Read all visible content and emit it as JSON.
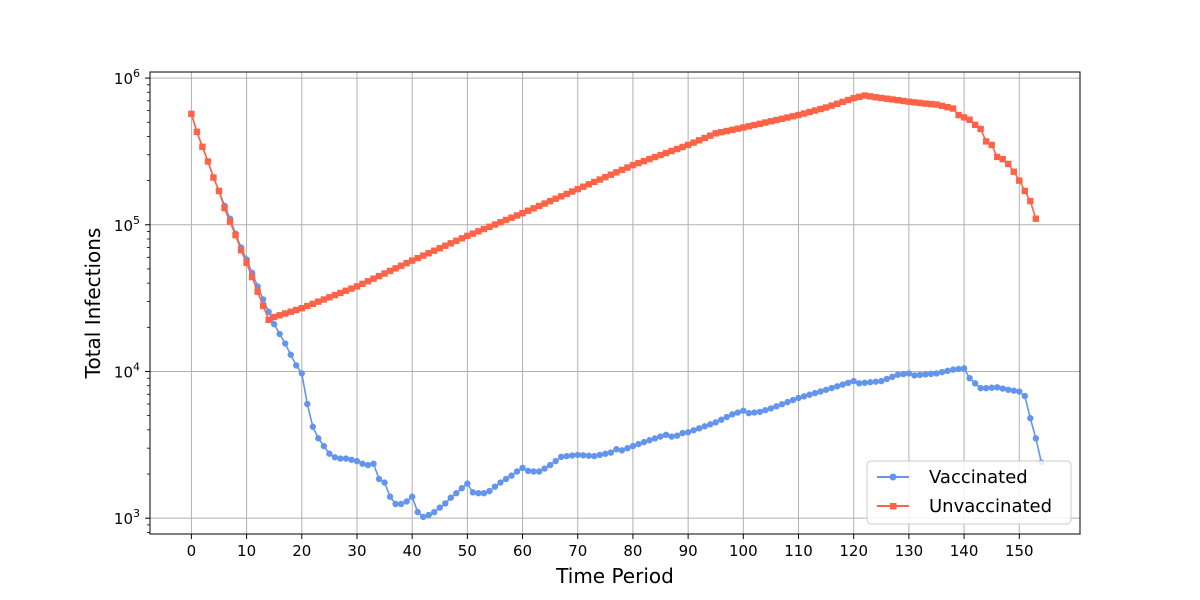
{
  "chart_data": {
    "type": "line",
    "xlabel": "Time Period",
    "ylabel": "Total Infections",
    "yscale": "log",
    "xlim": [
      -7.5,
      161
    ],
    "ylim": [
      780,
      1100000
    ],
    "xticks": [
      0,
      10,
      20,
      30,
      40,
      50,
      60,
      70,
      80,
      90,
      100,
      110,
      120,
      130,
      140,
      150
    ],
    "yticks": [
      {
        "value": 1000,
        "base": "10",
        "exp": "3"
      },
      {
        "value": 10000,
        "base": "10",
        "exp": "4"
      },
      {
        "value": 100000,
        "base": "10",
        "exp": "5"
      },
      {
        "value": 1000000,
        "base": "10",
        "exp": "6"
      }
    ],
    "grid": true,
    "legend_position": "lower-right",
    "series": [
      {
        "name": "Vaccinated",
        "color": "#6495ED",
        "marker": "circle",
        "anchors": [
          [
            0,
            570000
          ],
          [
            1,
            430000
          ],
          [
            2,
            340000
          ],
          [
            3,
            270000
          ],
          [
            4,
            210000
          ],
          [
            5,
            170000
          ],
          [
            6,
            135000
          ],
          [
            7,
            110000
          ],
          [
            8,
            87000
          ],
          [
            9,
            70000
          ],
          [
            10,
            58000
          ],
          [
            11,
            47000
          ],
          [
            12,
            38000
          ],
          [
            13,
            31000
          ],
          [
            14,
            25500
          ],
          [
            15,
            21000
          ],
          [
            16,
            18000
          ],
          [
            17,
            15500
          ],
          [
            18,
            13000
          ],
          [
            19,
            11000
          ],
          [
            20,
            9700
          ],
          [
            21,
            6000
          ],
          [
            22,
            4200
          ],
          [
            23,
            3500
          ],
          [
            24,
            3100
          ],
          [
            25,
            2750
          ],
          [
            26,
            2600
          ],
          [
            27,
            2550
          ],
          [
            28,
            2550
          ],
          [
            29,
            2500
          ],
          [
            30,
            2450
          ],
          [
            31,
            2350
          ],
          [
            32,
            2300
          ],
          [
            33,
            2350
          ],
          [
            34,
            1850
          ],
          [
            35,
            1750
          ],
          [
            36,
            1400
          ],
          [
            37,
            1250
          ],
          [
            38,
            1250
          ],
          [
            39,
            1300
          ],
          [
            40,
            1400
          ],
          [
            41,
            1100
          ],
          [
            42,
            1020
          ],
          [
            43,
            1050
          ],
          [
            44,
            1100
          ],
          [
            45,
            1180
          ],
          [
            46,
            1260
          ],
          [
            47,
            1380
          ],
          [
            48,
            1480
          ],
          [
            49,
            1600
          ],
          [
            50,
            1720
          ],
          [
            51,
            1500
          ],
          [
            52,
            1480
          ],
          [
            53,
            1480
          ],
          [
            54,
            1530
          ],
          [
            55,
            1640
          ],
          [
            56,
            1750
          ],
          [
            57,
            1850
          ],
          [
            58,
            1950
          ],
          [
            59,
            2080
          ],
          [
            60,
            2200
          ],
          [
            61,
            2100
          ],
          [
            62,
            2080
          ],
          [
            63,
            2080
          ],
          [
            64,
            2180
          ],
          [
            65,
            2300
          ],
          [
            66,
            2450
          ],
          [
            67,
            2620
          ],
          [
            70,
            2700
          ],
          [
            73,
            2650
          ],
          [
            76,
            2800
          ],
          [
            77,
            2950
          ],
          [
            78,
            2900
          ],
          [
            80,
            3100
          ],
          [
            82,
            3300
          ],
          [
            85,
            3600
          ],
          [
            86,
            3700
          ],
          [
            87,
            3600
          ],
          [
            88,
            3650
          ],
          [
            89,
            3800
          ],
          [
            90,
            3850
          ],
          [
            95,
            4500
          ],
          [
            98,
            5100
          ],
          [
            100,
            5400
          ],
          [
            101,
            5200
          ],
          [
            103,
            5300
          ],
          [
            105,
            5600
          ],
          [
            110,
            6600
          ],
          [
            115,
            7500
          ],
          [
            120,
            8600
          ],
          [
            121,
            8300
          ],
          [
            125,
            8600
          ],
          [
            128,
            9500
          ],
          [
            130,
            9700
          ],
          [
            131,
            9400
          ],
          [
            135,
            9700
          ],
          [
            138,
            10300
          ],
          [
            140,
            10500
          ],
          [
            141,
            9000
          ],
          [
            142,
            8300
          ],
          [
            143,
            7700
          ],
          [
            144,
            7700
          ],
          [
            146,
            7800
          ],
          [
            148,
            7500
          ],
          [
            150,
            7300
          ],
          [
            151,
            6800
          ],
          [
            152,
            4800
          ],
          [
            153,
            3500
          ],
          [
            154,
            2400
          ]
        ]
      },
      {
        "name": "Unvaccinated",
        "color": "#FF6347",
        "marker": "square",
        "anchors": [
          [
            0,
            570000
          ],
          [
            1,
            430000
          ],
          [
            2,
            340000
          ],
          [
            3,
            270000
          ],
          [
            4,
            210000
          ],
          [
            5,
            170000
          ],
          [
            6,
            130000
          ],
          [
            7,
            105000
          ],
          [
            8,
            85000
          ],
          [
            9,
            67000
          ],
          [
            10,
            55000
          ],
          [
            11,
            44000
          ],
          [
            12,
            35000
          ],
          [
            13,
            28000
          ],
          [
            14,
            22500
          ],
          [
            15,
            23500
          ],
          [
            20,
            27000
          ],
          [
            30,
            38000
          ],
          [
            40,
            57000
          ],
          [
            50,
            84000
          ],
          [
            60,
            120000
          ],
          [
            70,
            175000
          ],
          [
            80,
            255000
          ],
          [
            90,
            350000
          ],
          [
            95,
            420000
          ],
          [
            100,
            460000
          ],
          [
            110,
            560000
          ],
          [
            115,
            630000
          ],
          [
            120,
            730000
          ],
          [
            122,
            760000
          ],
          [
            124,
            740000
          ],
          [
            127,
            715000
          ],
          [
            130,
            690000
          ],
          [
            133,
            670000
          ],
          [
            135,
            660000
          ],
          [
            138,
            620000
          ],
          [
            139,
            560000
          ],
          [
            141,
            520000
          ],
          [
            142,
            480000
          ],
          [
            143,
            450000
          ],
          [
            144,
            370000
          ],
          [
            145,
            350000
          ],
          [
            146,
            290000
          ],
          [
            147,
            280000
          ],
          [
            148,
            260000
          ],
          [
            149,
            230000
          ],
          [
            150,
            200000
          ],
          [
            151,
            170000
          ],
          [
            152,
            145000
          ],
          [
            153,
            110000
          ]
        ]
      }
    ]
  }
}
